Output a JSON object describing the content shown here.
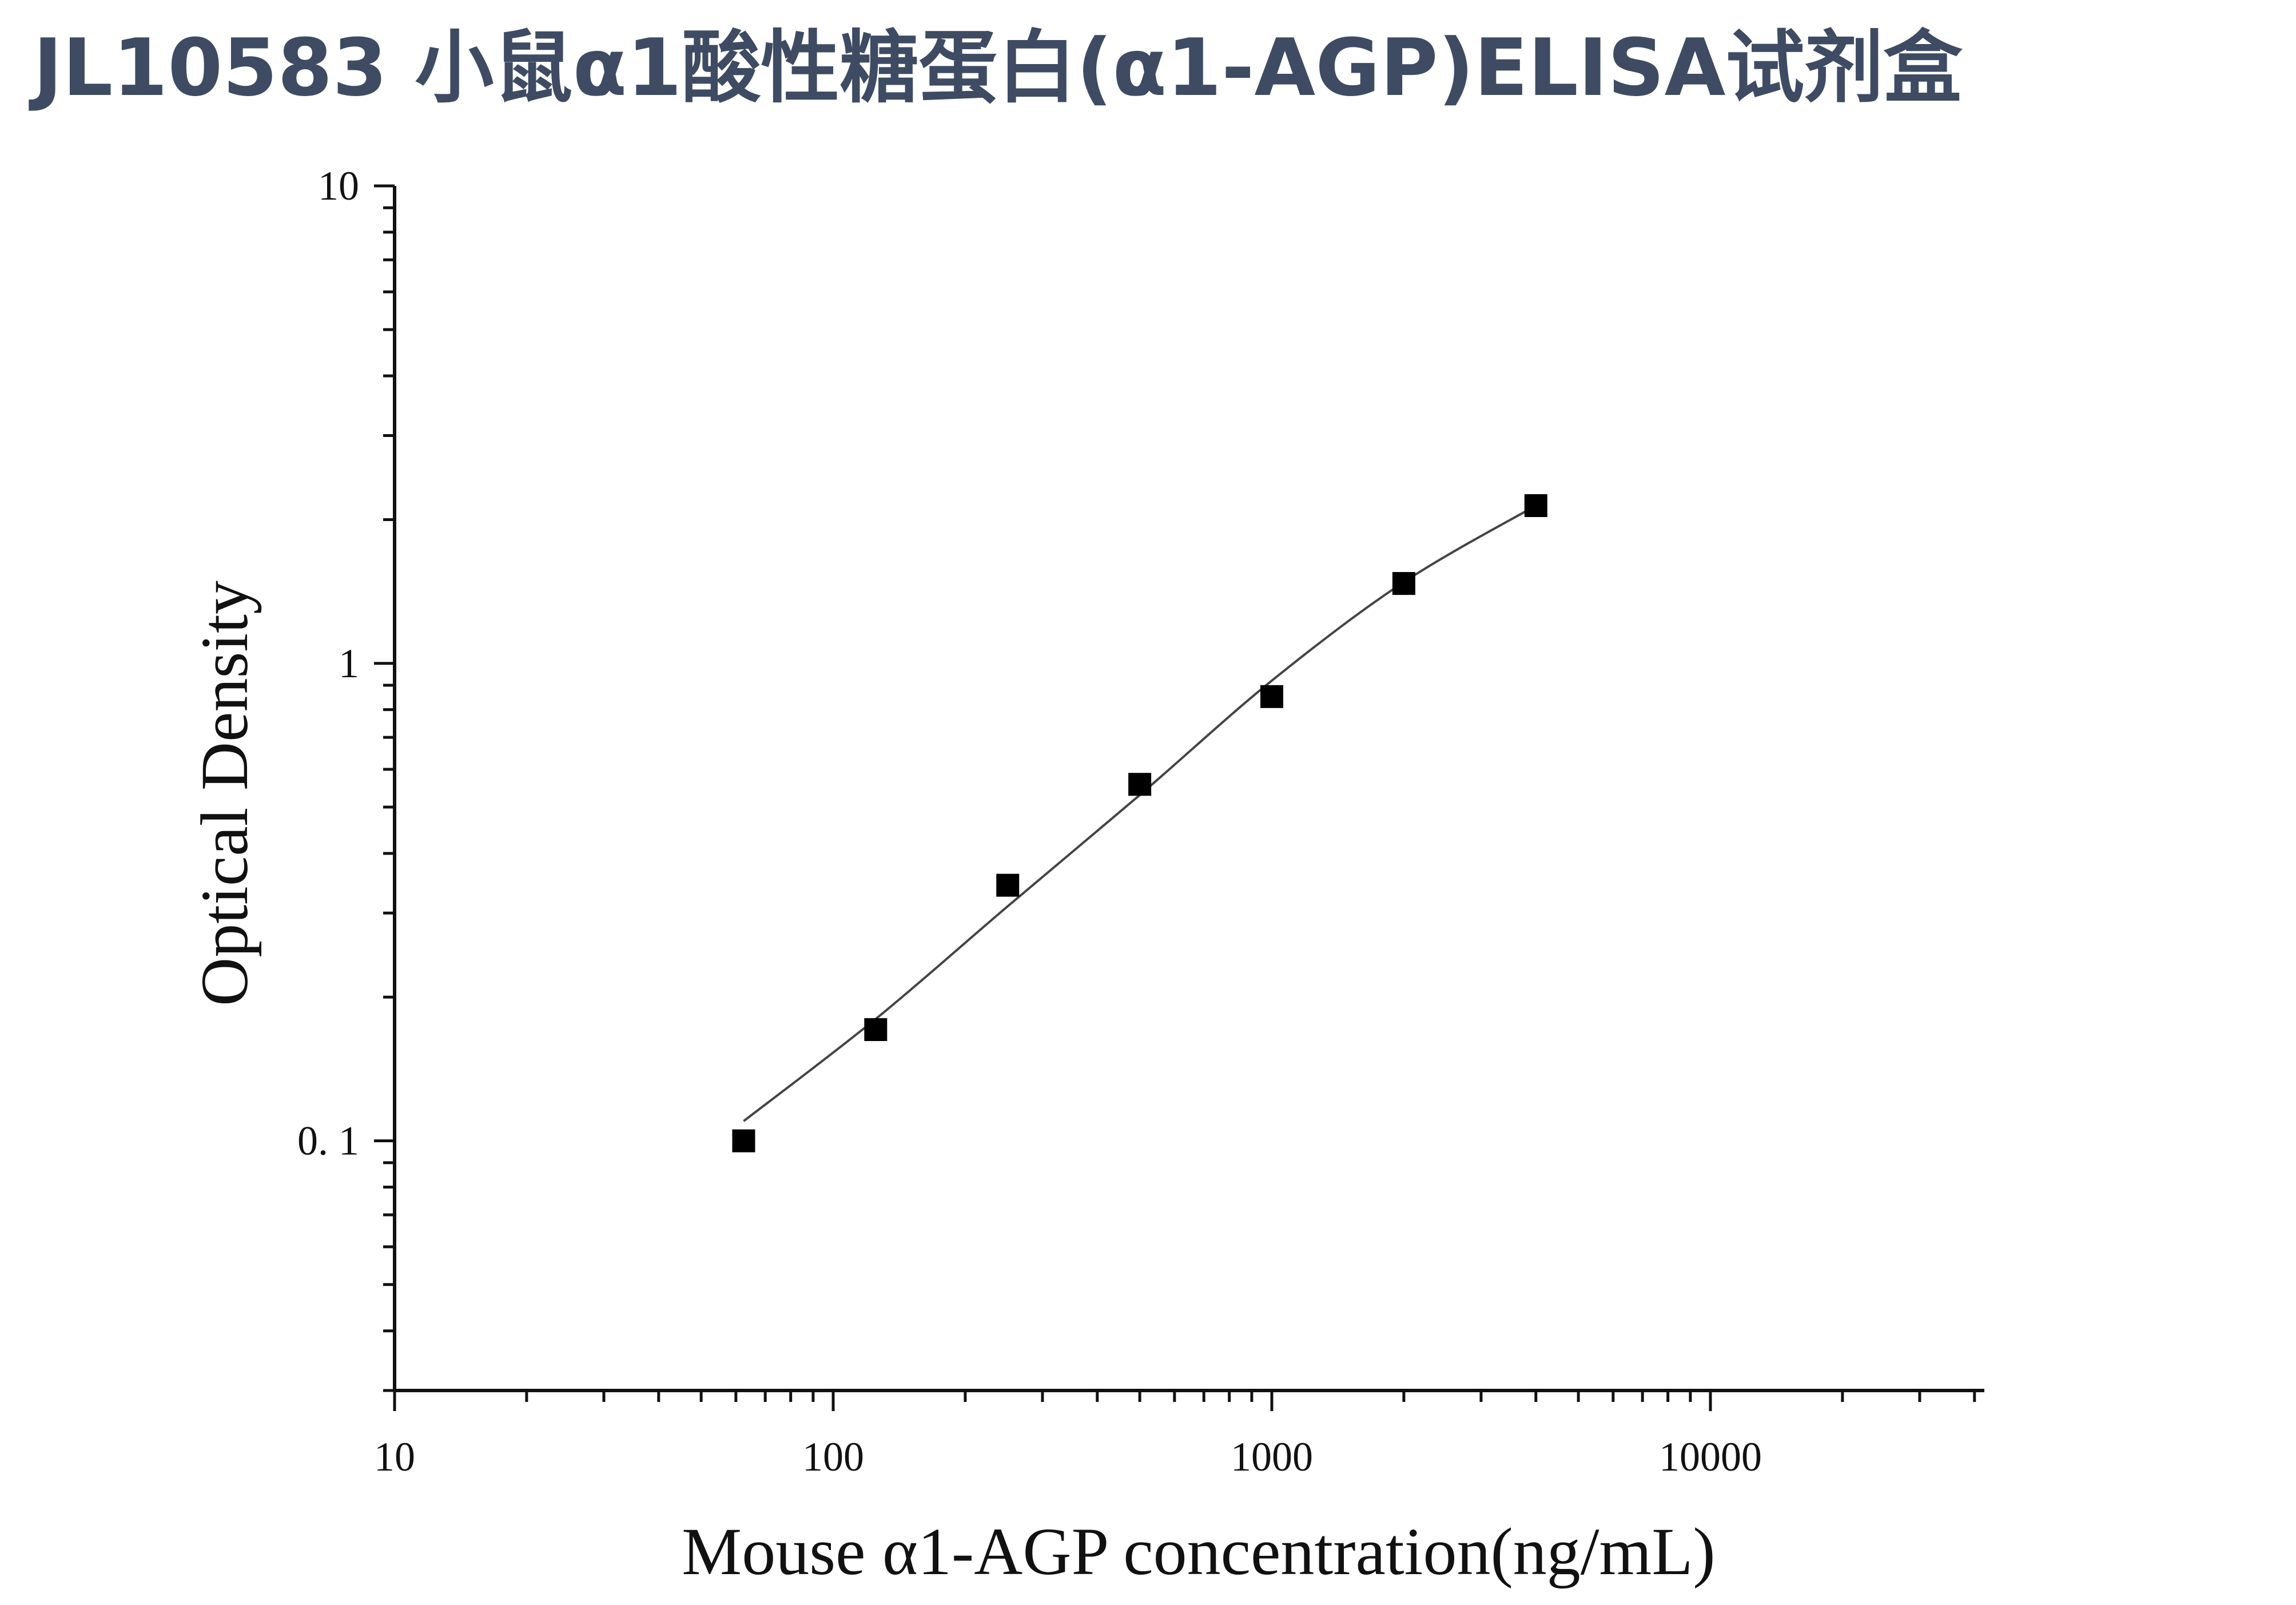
{
  "title": "JL10583 小鼠α1酸性糖蛋白(α1-AGP)ELISA试剂盒",
  "colors": {
    "title": "#3e4b63",
    "axis": "#111111",
    "curve": "#444444",
    "marker": "#000000"
  },
  "chart_data": {
    "type": "scatter",
    "title": "",
    "xlabel": "Mouse α1-AGP concentration(ng/mL)",
    "ylabel": "Optical Density",
    "xscale": "log",
    "yscale": "log",
    "xlim": [
      10,
      40000
    ],
    "ylim": [
      0.03,
      10
    ],
    "x_ticks": [
      10,
      100,
      1000,
      10000
    ],
    "x_tick_labels": [
      "10",
      "100",
      "1000",
      "10000"
    ],
    "y_ticks": [
      0.1,
      1,
      10
    ],
    "y_tick_labels": [
      "0. 1",
      "1",
      "10"
    ],
    "grid": false,
    "legend": "none",
    "series": [
      {
        "marker": "square",
        "x": [
          62.5,
          125,
          250,
          500,
          1000,
          2000,
          4000
        ],
        "y": [
          0.1,
          0.171,
          0.343,
          0.558,
          0.852,
          1.47,
          2.14
        ]
      }
    ],
    "fit_curve": {
      "x": [
        62.5,
        125,
        250,
        500,
        1000,
        2000,
        4000
      ],
      "y": [
        0.11,
        0.18,
        0.31,
        0.53,
        0.92,
        1.48,
        2.14
      ]
    }
  }
}
